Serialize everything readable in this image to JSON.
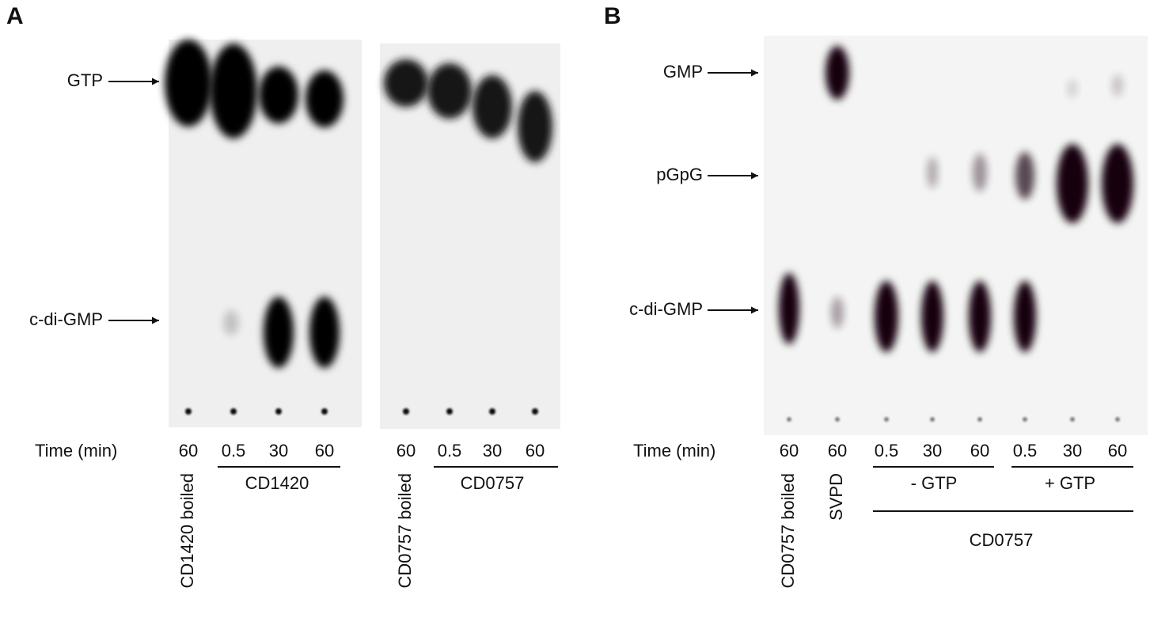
{
  "panel_a": {
    "label": "A",
    "markers": [
      "GTP",
      "c-di-GMP"
    ],
    "time_label": "Time (min)",
    "gels": [
      {
        "times": [
          "60",
          "0.5",
          "30",
          "60"
        ],
        "boiled": "CD1420 boiled",
        "group": "CD1420"
      },
      {
        "times": [
          "60",
          "0.5",
          "30",
          "60"
        ],
        "boiled": "CD0757 boiled",
        "group": "CD0757"
      }
    ]
  },
  "panel_b": {
    "label": "B",
    "markers": [
      "GMP",
      "pGpG",
      "c-di-GMP"
    ],
    "time_label": "Time (min)",
    "times": [
      "60",
      "60",
      "0.5",
      "30",
      "60",
      "0.5",
      "30",
      "60"
    ],
    "lane_labels": [
      "CD0757 boiled",
      "SVPD"
    ],
    "groups": [
      "- GTP",
      "+ GTP"
    ],
    "enzyme": "CD0757"
  }
}
